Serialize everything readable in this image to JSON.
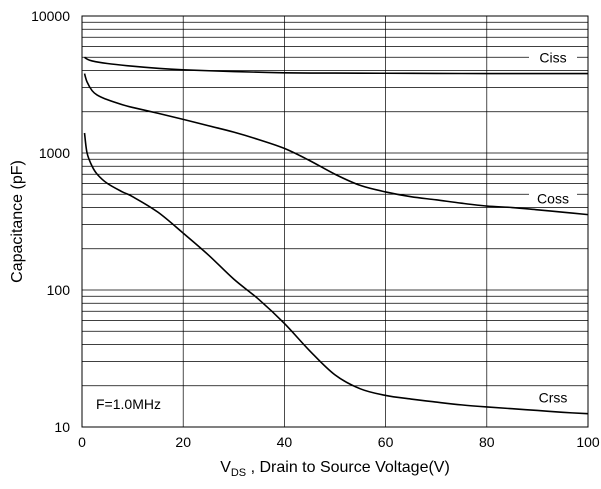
{
  "chart_data": {
    "type": "line",
    "xscale": "linear",
    "yscale": "log",
    "xlim": [
      0,
      100
    ],
    "ylim": [
      10,
      10000
    ],
    "xticks": [
      0,
      20,
      40,
      60,
      80,
      100
    ],
    "xtick_labels": [
      "0",
      "20",
      "40",
      "60",
      "80",
      "100"
    ],
    "yticks": [
      10,
      100,
      1000,
      10000
    ],
    "ytick_labels": [
      "10",
      "100",
      "1000",
      "10000"
    ],
    "xlabel": {
      "main": "V",
      "sub": "DS",
      "rest": " , Drain to Source Voltage(V)"
    },
    "ylabel": "Capacitance (pF)",
    "annotation": "F=1.0MHz",
    "grid": true,
    "colors": {
      "line": "#000000",
      "grid": "#000000"
    },
    "series": [
      {
        "name": "Ciss",
        "x": [
          0.5,
          1,
          2,
          5,
          10,
          15,
          20,
          30,
          40,
          50,
          60,
          70,
          80,
          90,
          100
        ],
        "y": [
          5000,
          4850,
          4700,
          4500,
          4300,
          4150,
          4050,
          3930,
          3850,
          3830,
          3820,
          3810,
          3800,
          3800,
          3800
        ]
      },
      {
        "name": "Coss",
        "x": [
          0.5,
          1,
          2,
          3,
          5,
          8,
          10,
          15,
          20,
          25,
          30,
          35,
          40,
          45,
          50,
          55,
          60,
          65,
          70,
          75,
          80,
          85,
          90,
          95,
          100
        ],
        "y": [
          3800,
          3300,
          2850,
          2650,
          2450,
          2250,
          2150,
          1950,
          1760,
          1580,
          1420,
          1250,
          1080,
          880,
          700,
          580,
          520,
          480,
          455,
          430,
          410,
          400,
          385,
          370,
          355
        ]
      },
      {
        "name": "Crss",
        "x": [
          0.5,
          1,
          2,
          3,
          5,
          8,
          10,
          15,
          20,
          25,
          30,
          35,
          40,
          45,
          50,
          55,
          60,
          65,
          70,
          75,
          80,
          85,
          90,
          95,
          100
        ],
        "y": [
          1400,
          1000,
          800,
          700,
          600,
          520,
          480,
          370,
          260,
          180,
          120,
          85,
          57,
          36,
          24,
          19,
          17,
          16,
          15.2,
          14.5,
          14,
          13.6,
          13.2,
          12.8,
          12.5
        ]
      }
    ]
  }
}
